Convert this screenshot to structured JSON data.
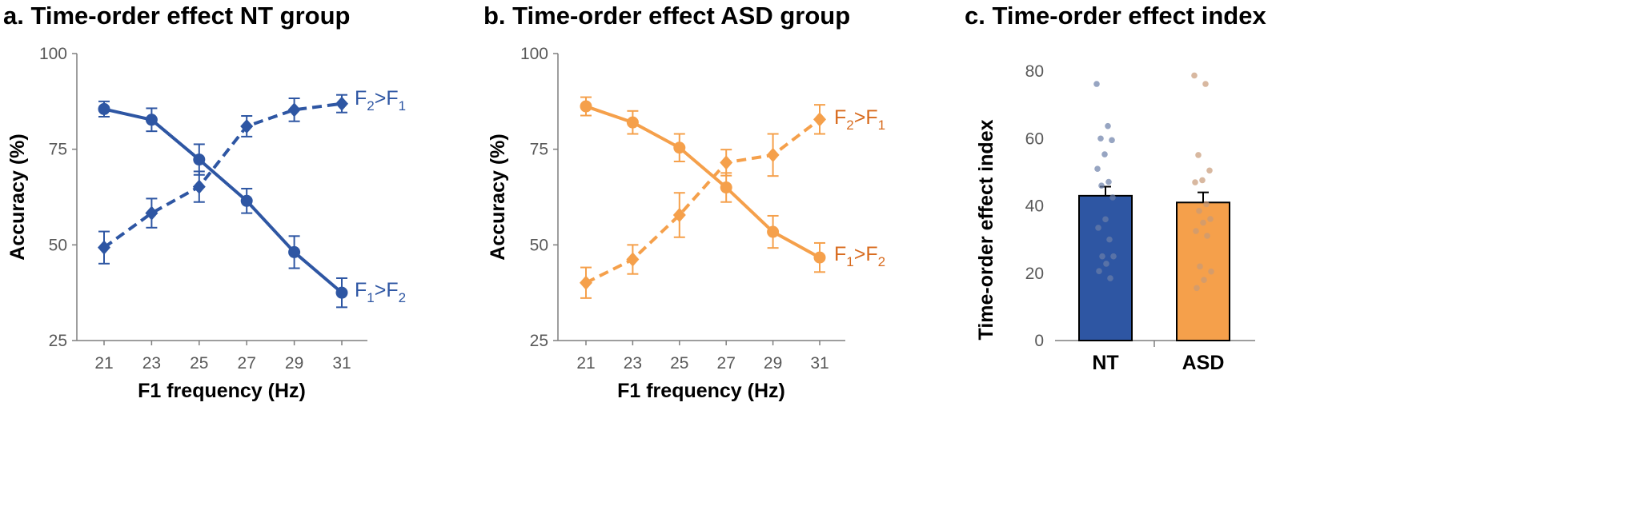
{
  "chart_data": [
    {
      "type": "line",
      "title": "a. Time-order effect NT group",
      "xlabel": "F1 frequency (Hz)",
      "ylabel": "Accuracy (%)",
      "categories": [
        "21",
        "23",
        "25",
        "27",
        "29",
        "31"
      ],
      "y_ticks": [
        "25",
        "50",
        "75",
        "100"
      ],
      "ylim": [
        25,
        100
      ],
      "color": "#2e56a3",
      "series": [
        {
          "name": "F1>F2",
          "label_main": "F",
          "label_sub1": "1",
          "label_mid": ">F",
          "label_sub2": "2",
          "marker": "circle",
          "dashed": false,
          "values": [
            85.5,
            82.7,
            72.3,
            61.5,
            48.1,
            37.5
          ],
          "errors": [
            2.0,
            3.0,
            4.0,
            3.2,
            4.2,
            3.8
          ]
        },
        {
          "name": "F2>F1",
          "label_main": "F",
          "label_sub1": "2",
          "label_mid": ">F",
          "label_sub2": "1",
          "marker": "diamond",
          "dashed": true,
          "values": [
            49.3,
            58.3,
            65.2,
            81.0,
            85.3,
            86.9
          ],
          "errors": [
            4.2,
            3.8,
            4.0,
            2.7,
            3.0,
            2.3
          ]
        }
      ]
    },
    {
      "type": "line",
      "title": "b. Time-order effect ASD group",
      "xlabel": "F1 frequency (Hz)",
      "ylabel": "Accuracy (%)",
      "categories": [
        "21",
        "23",
        "25",
        "27",
        "29",
        "31"
      ],
      "y_ticks": [
        "25",
        "50",
        "75",
        "100"
      ],
      "ylim": [
        25,
        100
      ],
      "color": "#f5a04b",
      "label_color": "#d86b1e",
      "series": [
        {
          "name": "F1>F2",
          "label_main": "F",
          "label_sub1": "1",
          "label_mid": ">F",
          "label_sub2": "2",
          "marker": "circle",
          "dashed": false,
          "values": [
            86.2,
            82.0,
            75.4,
            65.0,
            53.4,
            46.7
          ],
          "errors": [
            2.4,
            3.0,
            3.6,
            3.8,
            4.2,
            3.8
          ]
        },
        {
          "name": "F2>F1",
          "label_main": "F",
          "label_sub1": "2",
          "label_mid": ">F",
          "label_sub2": "1",
          "marker": "diamond",
          "dashed": true,
          "values": [
            40.1,
            46.2,
            57.8,
            71.5,
            73.5,
            82.8
          ],
          "errors": [
            4.0,
            3.8,
            5.8,
            3.4,
            5.5,
            3.8
          ]
        }
      ]
    },
    {
      "type": "bar",
      "title": "c. Time-order effect index",
      "xlabel": "",
      "ylabel": "Time-order effect index",
      "categories": [
        "NT",
        "ASD"
      ],
      "values": [
        43.0,
        41.0
      ],
      "errors": [
        2.7,
        3.0
      ],
      "colors": [
        "#2e56a3",
        "#f5a04b"
      ],
      "y_ticks": [
        "0",
        "20",
        "40",
        "60",
        "80"
      ],
      "ylim": [
        0,
        80
      ],
      "individual_points": [
        [
          76.2,
          63.7,
          60.0,
          59.5,
          55.3,
          51.0,
          47.1,
          46.0,
          42.5,
          36.0,
          33.5,
          30.0,
          25.0,
          25.0,
          22.8,
          20.6,
          18.5
        ],
        [
          78.7,
          76.2,
          55.1,
          50.5,
          47.6,
          47.0,
          40.5,
          38.5,
          36.1,
          35.0,
          32.5,
          31.1,
          22.0,
          20.5,
          18.0,
          15.6
        ]
      ]
    }
  ]
}
